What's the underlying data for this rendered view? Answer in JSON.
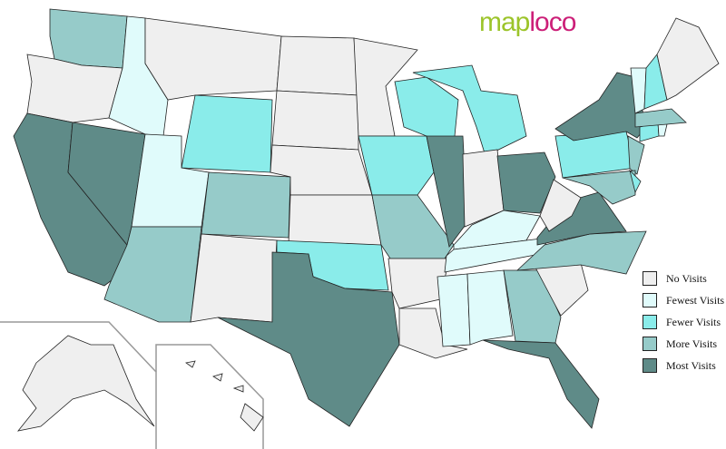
{
  "logo": {
    "part1": "map",
    "part2": "loco"
  },
  "colors": {
    "none": "#efefef",
    "fewest": "#e0fbfb",
    "fewer": "#8aecea",
    "more": "#96cbc9",
    "most": "#5f8b88"
  },
  "legend": [
    {
      "label": "No Visits",
      "level": "none"
    },
    {
      "label": "Fewest Visits",
      "level": "fewest"
    },
    {
      "label": "Fewer Visits",
      "level": "fewer"
    },
    {
      "label": "More Visits",
      "level": "more"
    },
    {
      "label": "Most Visits",
      "level": "most"
    }
  ],
  "states": {
    "WA": "more",
    "OR": "none",
    "CA": "most",
    "NV": "most",
    "ID": "fewest",
    "MT": "none",
    "WY": "fewer",
    "UT": "fewest",
    "AZ": "more",
    "CO": "more",
    "NM": "none",
    "ND": "none",
    "SD": "none",
    "NE": "none",
    "KS": "none",
    "OK": "fewer",
    "TX": "most",
    "MN": "none",
    "IA": "fewer",
    "MO": "more",
    "AR": "none",
    "LA": "none",
    "WI": "fewer",
    "MI": "fewer",
    "IL": "most",
    "IN": "none",
    "OH": "most",
    "KY": "fewest",
    "TN": "fewest",
    "MS": "fewest",
    "AL": "fewest",
    "GA": "more",
    "FL": "most",
    "SC": "none",
    "NC": "more",
    "VA": "most",
    "WV": "none",
    "PA": "fewer",
    "NY": "most",
    "NJ": "more",
    "MD": "more",
    "DE": "fewer",
    "CT": "fewer",
    "RI": "fewest",
    "MA": "more",
    "VT": "fewest",
    "NH": "fewer",
    "ME": "none",
    "AK": "none",
    "HI": "none"
  }
}
